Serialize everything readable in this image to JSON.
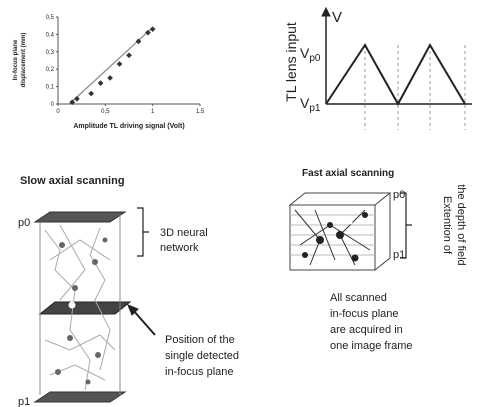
{
  "chart_data": [
    {
      "type": "scatter",
      "y_label": [
        "In-focus plane",
        "displacement (mm)"
      ],
      "x_label": "Amplitude TL driving signal (Volt)",
      "x": [
        0.15,
        0.2,
        0.35,
        0.45,
        0.55,
        0.65,
        0.75,
        0.85,
        0.95,
        1.0
      ],
      "values": [
        0.01,
        0.03,
        0.06,
        0.12,
        0.15,
        0.23,
        0.28,
        0.36,
        0.41,
        0.43
      ],
      "trend_line": {
        "x": [
          0.12,
          1.0
        ],
        "y": [
          0,
          0.44
        ]
      },
      "xlim": [
        0,
        1.5
      ],
      "ylim": [
        0,
        0.5
      ],
      "xticks": [
        0,
        {
          "value": 0.5,
          "label": "0,5"
        },
        1,
        {
          "value": 1.5,
          "label": "1,5"
        }
      ],
      "yticks": [
        0,
        {
          "value": 0.1,
          "label": "0,1"
        },
        {
          "value": 0.2,
          "label": "0,2"
        },
        {
          "value": 0.3,
          "label": "0,3"
        },
        {
          "value": 0.4,
          "label": "0,4"
        },
        {
          "value": 0.5,
          "label": "0,5"
        }
      ],
      "color": "#333333"
    }
  ],
  "wave": {
    "y_label": "TL lens input",
    "axis_label": "V",
    "top": {
      "main": "V",
      "sub": "p0"
    },
    "bottom": {
      "main": "V",
      "sub": "p1"
    }
  },
  "slow": {
    "title": "Slow axial scanning",
    "p0": "p0",
    "p1": "p1",
    "network": [
      "3D neural",
      "network"
    ],
    "position": [
      "Position of  the",
      "single detected",
      "in-focus plane"
    ]
  },
  "fast": {
    "title": "Fast axial scanning",
    "p0": "p0",
    "p1": "p1",
    "extent": [
      "Extention of",
      "the depth of field"
    ],
    "caption": [
      "All scanned",
      "in-focus plane",
      "are acquired in",
      "one image frame"
    ]
  }
}
